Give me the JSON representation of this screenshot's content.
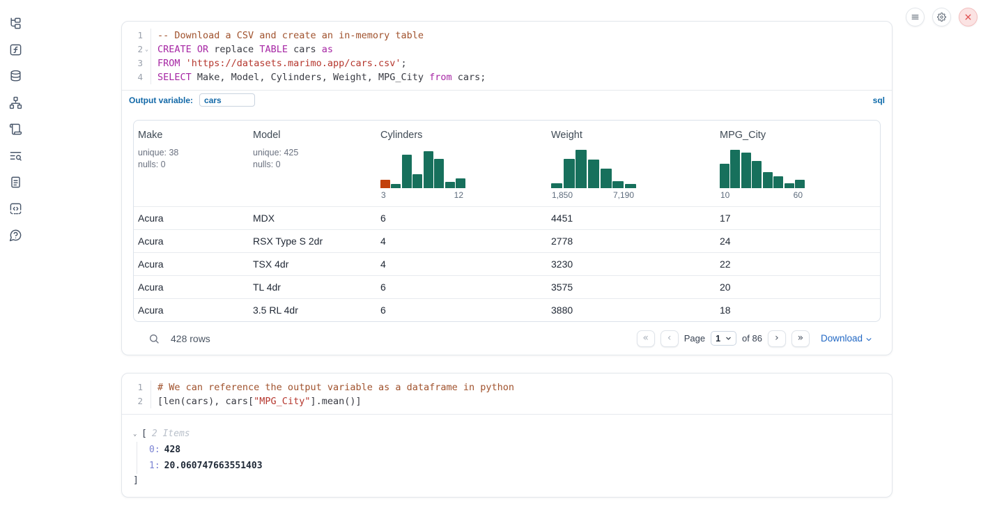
{
  "colors": {
    "hist_green": "#17705c",
    "hist_orange": "#c2410c",
    "accent_blue": "#1369a8",
    "link_blue": "#2268c4",
    "close_red": "#e05151"
  },
  "sidebar": {
    "items": [
      "file-explorer",
      "variables",
      "datasources",
      "dependency-graph",
      "scratchpad",
      "logs",
      "documentation",
      "snippets",
      "help"
    ]
  },
  "window_controls": [
    "menu",
    "settings",
    "close"
  ],
  "sql_cell": {
    "line_numbers": [
      "1",
      "2",
      "3",
      "4"
    ],
    "fold_line": 2,
    "lines": [
      [
        {
          "type": "comment",
          "text": "-- Download a CSV and create an in-memory table"
        }
      ],
      [
        {
          "type": "keyword",
          "text": "CREATE OR"
        },
        {
          "type": "plain",
          "text": " replace "
        },
        {
          "type": "keyword",
          "text": "TABLE"
        },
        {
          "type": "plain",
          "text": " cars "
        },
        {
          "type": "keyword",
          "text": "as"
        }
      ],
      [
        {
          "type": "keyword",
          "text": "FROM"
        },
        {
          "type": "plain",
          "text": " "
        },
        {
          "type": "string",
          "text": "'https://datasets.marimo.app/cars.csv'"
        },
        {
          "type": "plain",
          "text": ";"
        }
      ],
      [
        {
          "type": "keyword",
          "text": "SELECT"
        },
        {
          "type": "plain",
          "text": " Make, Model, Cylinders, Weight, MPG_City "
        },
        {
          "type": "keyword",
          "text": "from"
        },
        {
          "type": "plain",
          "text": " cars;"
        }
      ]
    ],
    "output_variable_label": "Output variable:",
    "output_variable_value": "cars",
    "language_badge": "sql"
  },
  "table": {
    "columns": [
      {
        "name": "Make",
        "stats": [
          "unique: 38",
          "nulls: 0"
        ]
      },
      {
        "name": "Model",
        "stats": [
          "unique: 425",
          "nulls: 0"
        ]
      },
      {
        "name": "Cylinders",
        "hist": 0
      },
      {
        "name": "Weight",
        "hist": 1
      },
      {
        "name": "MPG_City",
        "hist": 2
      }
    ],
    "rows": [
      [
        "Acura",
        "MDX",
        "6",
        "4451",
        "17"
      ],
      [
        "Acura",
        "RSX Type S 2dr",
        "4",
        "2778",
        "24"
      ],
      [
        "Acura",
        "TSX 4dr",
        "4",
        "3230",
        "22"
      ],
      [
        "Acura",
        "TL 4dr",
        "6",
        "3575",
        "20"
      ],
      [
        "Acura",
        "3.5 RL 4dr",
        "6",
        "3880",
        "18"
      ]
    ],
    "footer": {
      "rows_label": "428 rows",
      "page_label": "Page",
      "page_value": "1",
      "total_label": "of 86",
      "download_label": "Download",
      "pager": {
        "first": "«",
        "prev": "‹",
        "next": "›",
        "last": "»"
      }
    }
  },
  "chart_data": [
    {
      "type": "bar",
      "subtype": "histogram",
      "title": "Cylinders distribution",
      "x_min_label": "3",
      "x_max_label": "12",
      "bar_heights_rel": [
        0.2,
        0.1,
        0.82,
        0.35,
        0.92,
        0.72,
        0.16,
        0.24
      ],
      "highlight_first_bar": true,
      "bar_color": "#17705c",
      "highlight_color": "#c2410c"
    },
    {
      "type": "bar",
      "subtype": "histogram",
      "title": "Weight distribution",
      "x_min_label": "1,850",
      "x_max_label": "7,190",
      "bar_heights_rel": [
        0.12,
        0.72,
        0.95,
        0.7,
        0.48,
        0.18,
        0.1
      ],
      "highlight_first_bar": false,
      "bar_color": "#17705c"
    },
    {
      "type": "bar",
      "subtype": "histogram",
      "title": "MPG_City distribution",
      "x_min_label": "10",
      "x_max_label": "60",
      "bar_heights_rel": [
        0.6,
        0.95,
        0.88,
        0.68,
        0.4,
        0.3,
        0.12,
        0.2
      ],
      "highlight_first_bar": false,
      "bar_color": "#17705c"
    }
  ],
  "python_cell": {
    "line_numbers": [
      "1",
      "2"
    ],
    "lines": [
      [
        {
          "type": "comment",
          "text": "# We can reference the output variable as a dataframe in python"
        }
      ],
      [
        {
          "type": "plain",
          "text": "[len(cars), cars["
        },
        {
          "type": "string",
          "text": "\"MPG_City\""
        },
        {
          "type": "plain",
          "text": "].mean()]"
        }
      ]
    ]
  },
  "output_tree": {
    "open_bracket": "[",
    "items_label": "2 Items",
    "entries": [
      {
        "key": "0",
        "value": "428"
      },
      {
        "key": "1",
        "value": "20.060747663551403"
      }
    ],
    "close_bracket": "]"
  }
}
